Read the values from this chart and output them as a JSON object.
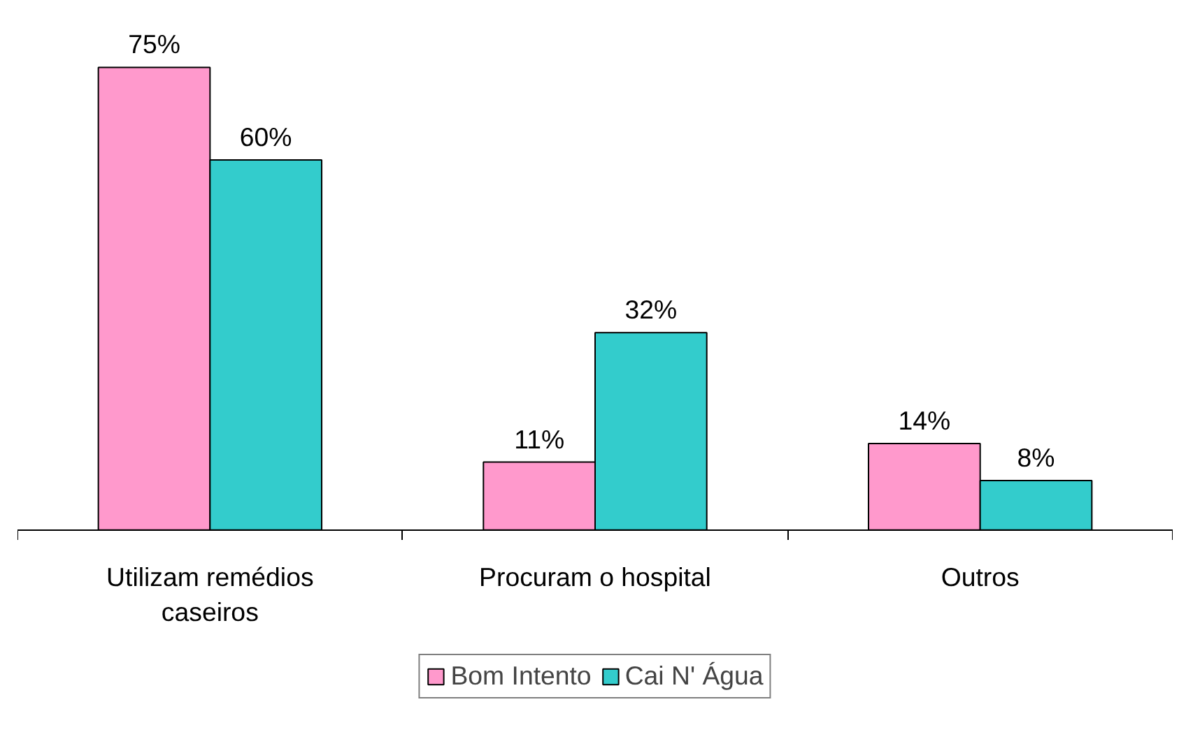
{
  "chart_data": {
    "type": "bar",
    "categories": [
      "Utilizam remédios caseiros",
      "Procuram o hospital",
      "Outros"
    ],
    "series": [
      {
        "name": "Bom Intento",
        "color": "#ff99cc",
        "values": [
          75,
          11,
          14
        ],
        "value_labels": [
          "75%",
          "11%",
          "14%"
        ]
      },
      {
        "name": "Cai N' Água",
        "color": "#33cccc",
        "values": [
          60,
          32,
          8
        ],
        "value_labels": [
          "60%",
          "32%",
          "8%"
        ]
      }
    ],
    "legend": "bottom"
  }
}
